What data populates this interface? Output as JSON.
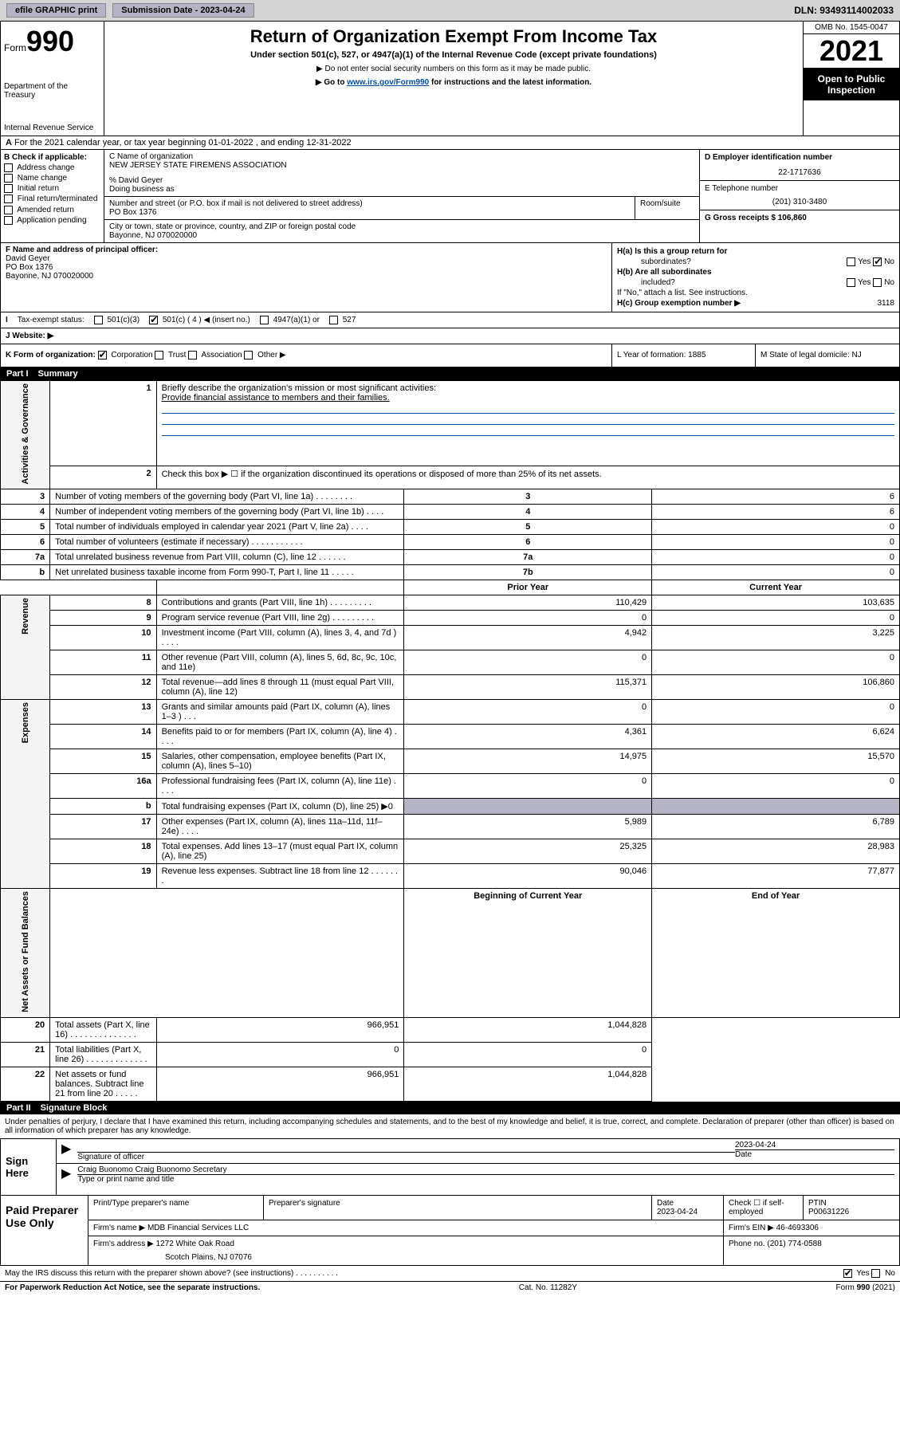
{
  "top": {
    "efile": "efile GRAPHIC print",
    "submission": "Submission Date - 2023-04-24",
    "dln": "DLN: 93493114002033"
  },
  "header": {
    "form_prefix": "Form",
    "form_number": "990",
    "title": "Return of Organization Exempt From Income Tax",
    "subtitle": "Under section 501(c), 527, or 4947(a)(1) of the Internal Revenue Code (except private foundations)",
    "note1": "▶ Do not enter social security numbers on this form as it may be made public.",
    "goto_prefix": "▶ Go to ",
    "goto_link": "www.irs.gov/Form990",
    "goto_suffix": " for instructions and the latest information.",
    "dept": "Department of the Treasury",
    "irs": "Internal Revenue Service",
    "omb": "OMB No. 1545-0047",
    "year": "2021",
    "open_public1": "Open to Public",
    "open_public2": "Inspection"
  },
  "row_a": {
    "label": "A",
    "text": "For the 2021 calendar year, or tax year beginning 01-01-2022   , and ending 12-31-2022"
  },
  "col_b": {
    "hdr": "B Check if applicable:",
    "opts": [
      "Address change",
      "Name change",
      "Initial return",
      "Final return/terminated",
      "Amended return",
      "Application pending"
    ]
  },
  "col_c": {
    "name_label": "C Name of organization",
    "org_name": "NEW JERSEY STATE FIREMENS ASSOCIATION",
    "care_of": "% David Geyer",
    "dba_label": "Doing business as",
    "street_label": "Number and street (or P.O. box if mail is not delivered to street address)",
    "street": "PO Box 1376",
    "room_label": "Room/suite",
    "city_label": "City or town, state or province, country, and ZIP or foreign postal code",
    "city": "Bayonne, NJ  070020000"
  },
  "col_d": {
    "label": "D Employer identification number",
    "ein": "22-1717636"
  },
  "col_e": {
    "label": "E Telephone number",
    "phone": "(201) 310-3480"
  },
  "col_g": {
    "label": "G Gross receipts $",
    "amount": "106,860"
  },
  "section_f": {
    "label": "F Name and address of principal officer:",
    "name": "David Geyer",
    "addr1": "PO Box 1376",
    "addr2": "Bayonne, NJ  070020000"
  },
  "section_h": {
    "ha": "H(a)  Is this a group return for",
    "ha2": "subordinates?",
    "hb": "H(b)  Are all subordinates",
    "hb2": "included?",
    "hb_note": "If \"No,\" attach a list. See instructions.",
    "hc_label": "H(c)  Group exemption number ▶",
    "hc_val": "3118",
    "yes": "Yes",
    "no": "No"
  },
  "section_i": {
    "label": "I",
    "tax_exempt": "Tax-exempt status:",
    "opt1": "501(c)(3)",
    "opt2": "501(c) ( 4 ) ◀ (insert no.)",
    "opt3": "4947(a)(1) or",
    "opt4": "527"
  },
  "section_j": {
    "label": "J",
    "website": "Website: ▶"
  },
  "section_k": {
    "label": "K Form of organization:",
    "opts": [
      "Corporation",
      "Trust",
      "Association",
      "Other ▶"
    ],
    "l_label": "L Year of formation: 1885",
    "m_label": "M State of legal domicile: NJ"
  },
  "part1": {
    "label": "Part I",
    "title": "Summary"
  },
  "summary": {
    "verts": [
      "Activities & Governance",
      "Revenue",
      "Expenses",
      "Net Assets or Fund Balances"
    ],
    "q1_label": "1",
    "q1_text": "Briefly describe the organization's mission or most significant activities:",
    "q1_answer": "Provide financial assistance to members and their families.",
    "q2_label": "2",
    "q2_text": "Check this box ▶ ☐  if the organization discontinued its operations or disposed of more than 25% of its net assets.",
    "rows_gov": [
      {
        "n": "3",
        "desc": "Number of voting members of the governing body (Part VI, line 1a)   .    .    .    .    .    .    .    .",
        "box": "3",
        "val": "6"
      },
      {
        "n": "4",
        "desc": "Number of independent voting members of the governing body (Part VI, line 1b)   .    .    .    .",
        "box": "4",
        "val": "6"
      },
      {
        "n": "5",
        "desc": "Total number of individuals employed in calendar year 2021 (Part V, line 2a)   .    .    .    .",
        "box": "5",
        "val": "0"
      },
      {
        "n": "6",
        "desc": "Total number of volunteers (estimate if necessary)   .    .    .    .    .    .    .    .    .    .    .",
        "box": "6",
        "val": "0"
      },
      {
        "n": "7a",
        "desc": "Total unrelated business revenue from Part VIII, column (C), line 12   .    .    .    .    .    .",
        "box": "7a",
        "val": "0"
      },
      {
        "n": "b",
        "desc": "Net unrelated business taxable income from Form 990-T, Part I, line 11   .    .    .    .    .",
        "box": "7b",
        "val": "0"
      }
    ],
    "col_prior": "Prior Year",
    "col_current": "Current Year",
    "rows_rev": [
      {
        "n": "8",
        "desc": "Contributions and grants (Part VIII, line 1h)   .    .    .    .    .    .    .    .    .",
        "prior": "110,429",
        "current": "103,635"
      },
      {
        "n": "9",
        "desc": "Program service revenue (Part VIII, line 2g)   .    .    .    .    .    .    .    .    .",
        "prior": "0",
        "current": "0"
      },
      {
        "n": "10",
        "desc": "Investment income (Part VIII, column (A), lines 3, 4, and 7d )   .    .    .    .",
        "prior": "4,942",
        "current": "3,225"
      },
      {
        "n": "11",
        "desc": "Other revenue (Part VIII, column (A), lines 5, 6d, 8c, 9c, 10c, and 11e)",
        "prior": "0",
        "current": "0"
      },
      {
        "n": "12",
        "desc": "Total revenue—add lines 8 through 11 (must equal Part VIII, column (A), line 12)",
        "prior": "115,371",
        "current": "106,860"
      }
    ],
    "rows_exp": [
      {
        "n": "13",
        "desc": "Grants and similar amounts paid (Part IX, column (A), lines 1–3 )   .    .    .",
        "prior": "0",
        "current": "0"
      },
      {
        "n": "14",
        "desc": "Benefits paid to or for members (Part IX, column (A), line 4)   .    .    .    .",
        "prior": "4,361",
        "current": "6,624"
      },
      {
        "n": "15",
        "desc": "Salaries, other compensation, employee benefits (Part IX, column (A), lines 5–10)",
        "prior": "14,975",
        "current": "15,570"
      },
      {
        "n": "16a",
        "desc": "Professional fundraising fees (Part IX, column (A), line 11e)   .    .    .    .",
        "prior": "0",
        "current": "0"
      },
      {
        "n": "b",
        "desc": "Total fundraising expenses (Part IX, column (D), line 25) ▶0",
        "prior": "",
        "current": "",
        "grey": true
      },
      {
        "n": "17",
        "desc": "Other expenses (Part IX, column (A), lines 11a–11d, 11f–24e)   .    .    .    .",
        "prior": "5,989",
        "current": "6,789"
      },
      {
        "n": "18",
        "desc": "Total expenses. Add lines 13–17 (must equal Part IX, column (A), line 25)",
        "prior": "25,325",
        "current": "28,983"
      },
      {
        "n": "19",
        "desc": "Revenue less expenses. Subtract line 18 from line 12   .    .    .    .    .    .    .",
        "prior": "90,046",
        "current": "77,877"
      }
    ],
    "col_begin": "Beginning of Current Year",
    "col_end": "End of Year",
    "rows_net": [
      {
        "n": "20",
        "desc": "Total assets (Part X, line 16)   .    .    .    .    .    .    .    .    .    .    .    .    .    .",
        "prior": "966,951",
        "current": "1,044,828"
      },
      {
        "n": "21",
        "desc": "Total liabilities (Part X, line 26)   .    .    .    .    .    .    .    .    .    .    .    .    .",
        "prior": "0",
        "current": "0"
      },
      {
        "n": "22",
        "desc": "Net assets or fund balances. Subtract line 21 from line 20   .    .    .    .    .",
        "prior": "966,951",
        "current": "1,044,828"
      }
    ]
  },
  "part2": {
    "label": "Part II",
    "title": "Signature Block"
  },
  "sig": {
    "declaration": "Under penalties of perjury, I declare that I have examined this return, including accompanying schedules and statements, and to the best of my knowledge and belief, it is true, correct, and complete. Declaration of preparer (other than officer) is based on all information of which preparer has any knowledge.",
    "sign_here": "Sign Here",
    "sig_officer": "Signature of officer",
    "sig_date": "2023-04-24",
    "date_label": "Date",
    "officer_name": "Craig Buonomo Craig Buonomo Secretary",
    "type_label": "Type or print name and title"
  },
  "preparer": {
    "label": "Paid Preparer Use Only",
    "h_name": "Print/Type preparer's name",
    "h_sig": "Preparer's signature",
    "h_date": "Date",
    "date_val": "2023-04-24",
    "h_check": "Check ☐ if self-employed",
    "h_ptin": "PTIN",
    "ptin": "P00631226",
    "firm_name_label": "Firm's name    ▶",
    "firm_name": "MDB Financial Services LLC",
    "firm_ein_label": "Firm's EIN ▶",
    "firm_ein": "46-4693306",
    "firm_addr_label": "Firm's address ▶",
    "firm_addr1": "1272 White Oak Road",
    "firm_addr2": "Scotch Plains, NJ  07076",
    "phone_label": "Phone no.",
    "phone": "(201) 774-0588"
  },
  "may_irs": {
    "text": "May the IRS discuss this return with the preparer shown above? (see instructions)   .    .    .    .    .    .    .    .    .    .",
    "yes": "Yes",
    "no": "No"
  },
  "footer": {
    "left": "For Paperwork Reduction Act Notice, see the separate instructions.",
    "mid": "Cat. No. 11282Y",
    "right": "Form 990 (2021)"
  }
}
